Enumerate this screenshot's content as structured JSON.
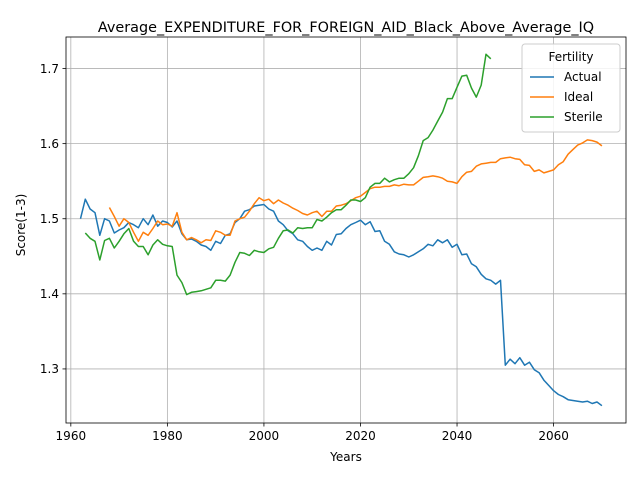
{
  "chart_data": {
    "type": "line",
    "title": "Average_EXPENDITURE_FOR_FOREIGN_AID_Black_Above_Average_IQ",
    "xlabel": "Years",
    "ylabel": "Score(1-3)",
    "xlim": [
      1959,
      2075
    ],
    "ylim": [
      1.228,
      1.742
    ],
    "xticks": [
      1960,
      1980,
      2000,
      2020,
      2040,
      2060
    ],
    "yticks": [
      1.3,
      1.4,
      1.5,
      1.6,
      1.7
    ],
    "ytick_labels": [
      "1.3",
      "1.4",
      "1.5",
      "1.6",
      "1.7"
    ],
    "grid": true,
    "legend": {
      "title": "Fertility",
      "placement": "top-right"
    },
    "series": [
      {
        "name": "Actual",
        "color": "#1f77b4",
        "x": [
          1962,
          1963,
          1964,
          1965,
          1966,
          1967,
          1968,
          1969,
          1970,
          1971,
          1972,
          1973,
          1974,
          1975,
          1976,
          1977,
          1978,
          1979,
          1980,
          1981,
          1982,
          1983,
          1984,
          1985,
          1986,
          1987,
          1988,
          1989,
          1990,
          1991,
          1992,
          1993,
          1994,
          1995,
          1996,
          1997,
          1998,
          1999,
          2000,
          2001,
          2002,
          2003,
          2004,
          2005,
          2006,
          2007,
          2008,
          2009,
          2010,
          2011,
          2012,
          2013,
          2014,
          2015,
          2016,
          2017,
          2018,
          2019,
          2020,
          2021,
          2022,
          2023,
          2024,
          2025,
          2026,
          2027,
          2028,
          2029,
          2030,
          2031,
          2032,
          2033,
          2034,
          2035,
          2036,
          2037,
          2038,
          2039,
          2040,
          2041,
          2042,
          2043,
          2044,
          2045,
          2046,
          2047,
          2048,
          2049,
          2050,
          2051,
          2052,
          2053,
          2054,
          2055,
          2056,
          2057,
          2058,
          2059,
          2060,
          2061,
          2062,
          2063,
          2064,
          2065,
          2066,
          2067,
          2068,
          2069,
          2070
        ],
        "y": [
          1.5,
          1.526,
          1.513,
          1.508,
          1.478,
          1.5,
          1.497,
          1.481,
          1.485,
          1.488,
          1.495,
          1.492,
          1.488,
          1.5,
          1.492,
          1.505,
          1.49,
          1.497,
          1.495,
          1.489,
          1.497,
          1.48,
          1.472,
          1.473,
          1.47,
          1.465,
          1.463,
          1.458,
          1.47,
          1.467,
          1.478,
          1.48,
          1.495,
          1.5,
          1.51,
          1.512,
          1.517,
          1.518,
          1.519,
          1.513,
          1.51,
          1.497,
          1.492,
          1.484,
          1.48,
          1.472,
          1.47,
          1.463,
          1.458,
          1.461,
          1.458,
          1.47,
          1.465,
          1.479,
          1.48,
          1.487,
          1.492,
          1.495,
          1.498,
          1.492,
          1.496,
          1.483,
          1.484,
          1.47,
          1.466,
          1.456,
          1.453,
          1.452,
          1.449,
          1.452,
          1.456,
          1.46,
          1.466,
          1.464,
          1.472,
          1.468,
          1.472,
          1.462,
          1.466,
          1.452,
          1.453,
          1.44,
          1.436,
          1.426,
          1.42,
          1.418,
          1.413,
          1.418,
          1.305,
          1.313,
          1.307,
          1.315,
          1.305,
          1.309,
          1.299,
          1.295,
          1.285,
          1.278,
          1.271,
          1.266,
          1.263,
          1.259,
          1.258,
          1.257,
          1.256,
          1.257,
          1.254,
          1.256,
          1.251
        ]
      },
      {
        "name": "Ideal",
        "color": "#ff7f0e",
        "x": [
          1968,
          1969,
          1970,
          1971,
          1972,
          1973,
          1974,
          1975,
          1976,
          1977,
          1978,
          1979,
          1980,
          1981,
          1982,
          1983,
          1984,
          1985,
          1986,
          1987,
          1988,
          1989,
          1990,
          1991,
          1992,
          1993,
          1994,
          1995,
          1996,
          1997,
          1998,
          1999,
          2000,
          2001,
          2002,
          2003,
          2004,
          2005,
          2006,
          2007,
          2008,
          2009,
          2010,
          2011,
          2012,
          2013,
          2014,
          2015,
          2016,
          2017,
          2018,
          2019,
          2020,
          2021,
          2022,
          2023,
          2024,
          2025,
          2026,
          2027,
          2028,
          2029,
          2030,
          2031,
          2032,
          2033,
          2034,
          2035,
          2036,
          2037,
          2038,
          2039,
          2040,
          2041,
          2042,
          2043,
          2044,
          2045,
          2046,
          2047,
          2048,
          2049,
          2050,
          2051,
          2052,
          2053,
          2054,
          2055,
          2056,
          2057,
          2058,
          2059,
          2060,
          2061,
          2062,
          2063,
          2064,
          2065,
          2066,
          2067,
          2068,
          2069,
          2070
        ],
        "y": [
          1.515,
          1.503,
          1.49,
          1.5,
          1.495,
          1.482,
          1.47,
          1.482,
          1.478,
          1.487,
          1.497,
          1.492,
          1.493,
          1.49,
          1.508,
          1.482,
          1.472,
          1.475,
          1.472,
          1.468,
          1.472,
          1.471,
          1.484,
          1.482,
          1.478,
          1.478,
          1.497,
          1.5,
          1.502,
          1.51,
          1.52,
          1.528,
          1.524,
          1.526,
          1.52,
          1.525,
          1.521,
          1.518,
          1.514,
          1.511,
          1.507,
          1.505,
          1.508,
          1.51,
          1.503,
          1.51,
          1.51,
          1.517,
          1.518,
          1.52,
          1.524,
          1.528,
          1.53,
          1.535,
          1.54,
          1.542,
          1.542,
          1.543,
          1.543,
          1.545,
          1.544,
          1.546,
          1.545,
          1.545,
          1.55,
          1.555,
          1.556,
          1.557,
          1.556,
          1.554,
          1.55,
          1.549,
          1.547,
          1.556,
          1.562,
          1.563,
          1.57,
          1.573,
          1.574,
          1.575,
          1.575,
          1.58,
          1.581,
          1.582,
          1.58,
          1.579,
          1.572,
          1.571,
          1.563,
          1.565,
          1.561,
          1.563,
          1.565,
          1.572,
          1.576,
          1.586,
          1.592,
          1.598,
          1.601,
          1.605,
          1.604,
          1.602,
          1.597
        ]
      },
      {
        "name": "Sterile",
        "color": "#2ca02c",
        "x": [
          1963,
          1964,
          1965,
          1966,
          1967,
          1968,
          1969,
          1970,
          1971,
          1972,
          1973,
          1974,
          1975,
          1976,
          1977,
          1978,
          1979,
          1980,
          1981,
          1982,
          1983,
          1984,
          1985,
          1986,
          1987,
          1988,
          1989,
          1990,
          1991,
          1992,
          1993,
          1994,
          1995,
          1996,
          1997,
          1998,
          1999,
          2000,
          2001,
          2002,
          2003,
          2004,
          2005,
          2006,
          2007,
          2008,
          2009,
          2010,
          2011,
          2012,
          2013,
          2014,
          2015,
          2016,
          2017,
          2018,
          2019,
          2020,
          2021,
          2022,
          2023,
          2024,
          2025,
          2026,
          2027,
          2028,
          2029,
          2030,
          2031,
          2032,
          2033,
          2034,
          2035,
          2036,
          2037,
          2038,
          2039,
          2040,
          2041,
          2042,
          2043,
          2044,
          2045,
          2046,
          2047
        ],
        "y": [
          1.481,
          1.474,
          1.47,
          1.445,
          1.471,
          1.474,
          1.461,
          1.47,
          1.48,
          1.487,
          1.47,
          1.463,
          1.463,
          1.452,
          1.465,
          1.472,
          1.466,
          1.464,
          1.463,
          1.425,
          1.415,
          1.399,
          1.402,
          1.403,
          1.404,
          1.406,
          1.408,
          1.418,
          1.418,
          1.417,
          1.425,
          1.442,
          1.455,
          1.454,
          1.451,
          1.458,
          1.456,
          1.455,
          1.46,
          1.462,
          1.474,
          1.484,
          1.485,
          1.481,
          1.488,
          1.487,
          1.488,
          1.488,
          1.499,
          1.497,
          1.502,
          1.508,
          1.512,
          1.512,
          1.518,
          1.525,
          1.525,
          1.523,
          1.528,
          1.542,
          1.547,
          1.547,
          1.554,
          1.549,
          1.552,
          1.554,
          1.554,
          1.56,
          1.568,
          1.584,
          1.604,
          1.608,
          1.618,
          1.63,
          1.642,
          1.66,
          1.66,
          1.675,
          1.69,
          1.691,
          1.674,
          1.662,
          1.678,
          1.719,
          1.713
        ]
      }
    ]
  }
}
